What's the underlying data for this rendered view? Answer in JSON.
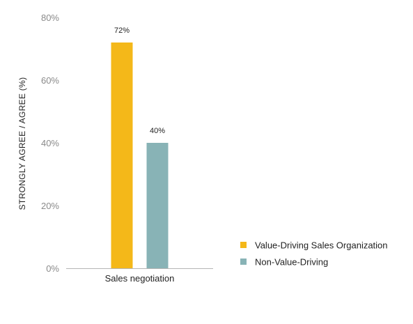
{
  "chart_data": {
    "type": "bar",
    "title": "",
    "xlabel": "",
    "ylabel": "STRONGLY AGREE / AGREE (%)",
    "categories": [
      "Sales negotiation"
    ],
    "ylim": [
      0,
      80
    ],
    "yticks": [
      "0%",
      "20%",
      "40%",
      "60%",
      "80%"
    ],
    "ytick_values": [
      0,
      20,
      40,
      60,
      80
    ],
    "grid": false,
    "legend_position": "right",
    "series": [
      {
        "name": "Value-Driving Sales Organization",
        "values": [
          72
        ],
        "labels": [
          "72%"
        ],
        "color": "#F4B819"
      },
      {
        "name": "Non-Value-Driving",
        "values": [
          40
        ],
        "labels": [
          "40%"
        ],
        "color": "#88B3B6"
      }
    ]
  }
}
